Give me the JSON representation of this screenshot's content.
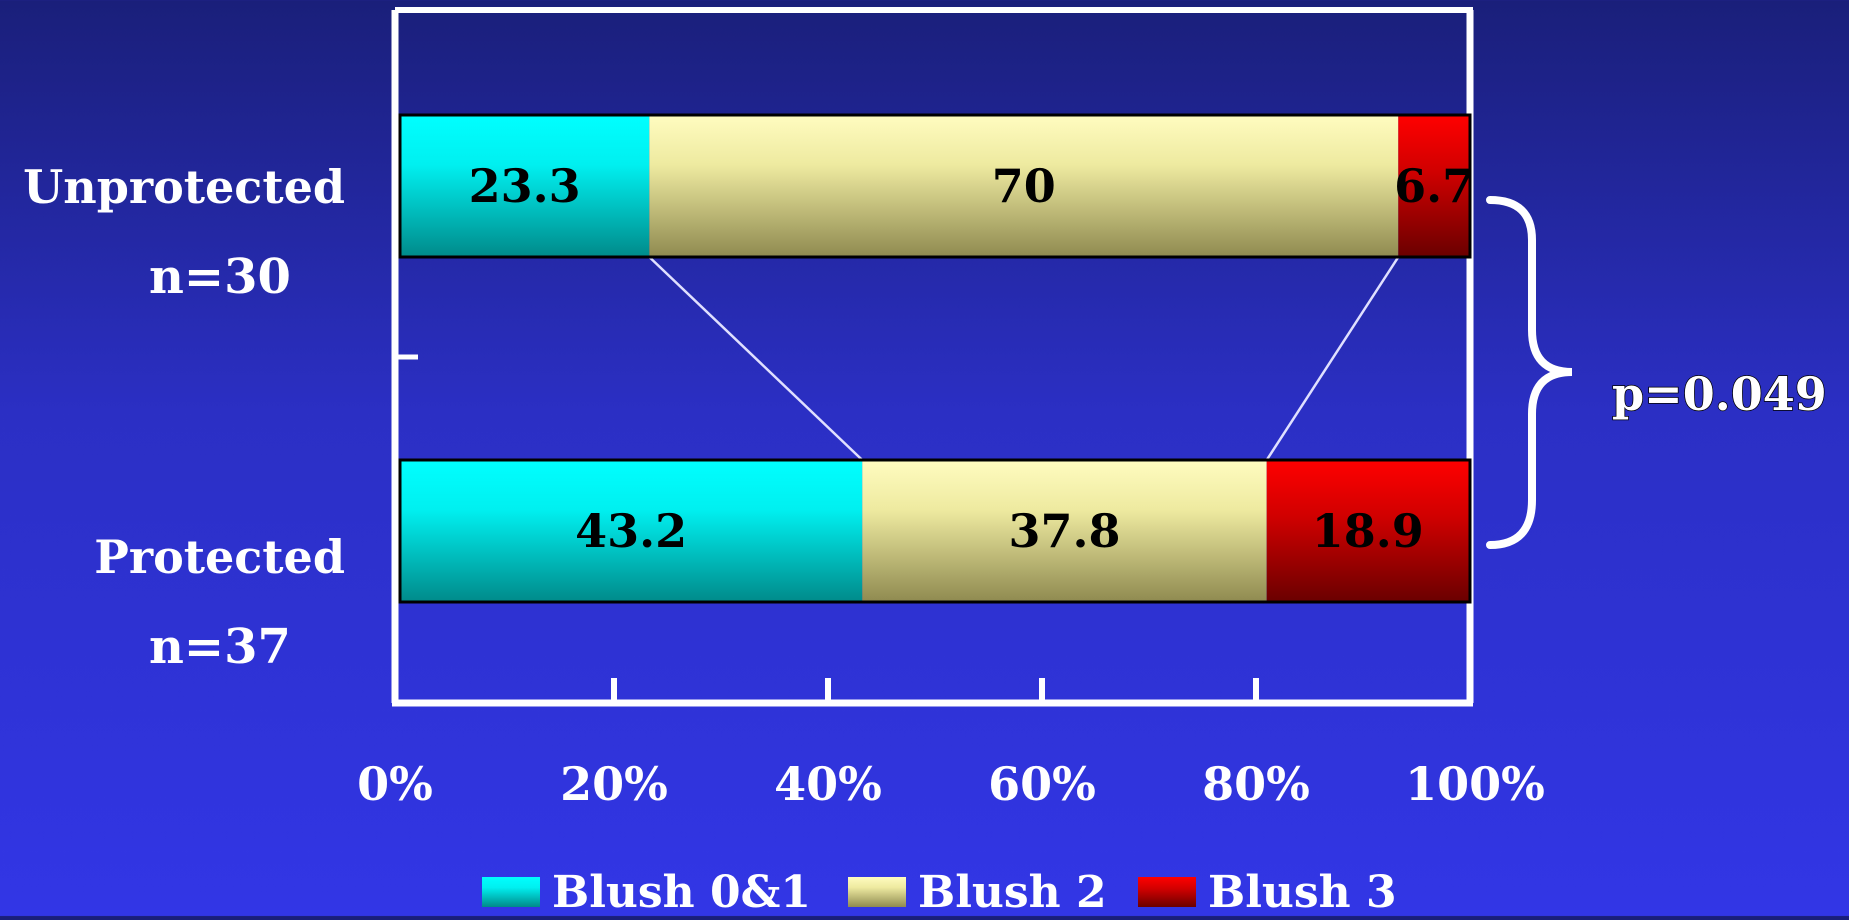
{
  "chart_data": {
    "type": "bar",
    "orientation": "horizontal",
    "stacked": true,
    "categories": [
      {
        "label": "Unprotected",
        "sublabel": "n=30"
      },
      {
        "label": "Protected",
        "sublabel": "n=37"
      }
    ],
    "series": [
      {
        "name": "Blush 0&1",
        "values": [
          23.3,
          43.2
        ],
        "labels": [
          "23.3",
          "43.2"
        ],
        "color": "#00e5e5"
      },
      {
        "name": "Blush 2",
        "values": [
          70,
          37.8
        ],
        "labels": [
          "70",
          "37.8"
        ],
        "color": "#e8e49a"
      },
      {
        "name": "Blush 3",
        "values": [
          6.7,
          18.9
        ],
        "labels": [
          "6.7",
          "18.9"
        ],
        "color": "#d40000"
      }
    ],
    "xlim": [
      0,
      100
    ],
    "xticks": [
      "0%",
      "20%",
      "40%",
      "60%",
      "80%",
      "100%"
    ],
    "annotation": "p=0.049",
    "legend_position": "bottom",
    "grid": false
  }
}
